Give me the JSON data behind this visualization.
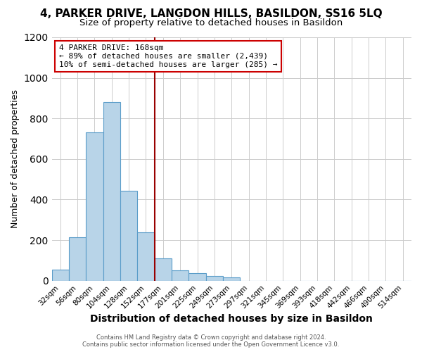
{
  "title": "4, PARKER DRIVE, LANGDON HILLS, BASILDON, SS16 5LQ",
  "subtitle": "Size of property relative to detached houses in Basildon",
  "xlabel": "Distribution of detached houses by size in Basildon",
  "ylabel": "Number of detached properties",
  "categories": [
    "32sqm",
    "56sqm",
    "80sqm",
    "104sqm",
    "128sqm",
    "152sqm",
    "177sqm",
    "201sqm",
    "225sqm",
    "249sqm",
    "273sqm",
    "297sqm",
    "321sqm",
    "345sqm",
    "369sqm",
    "393sqm",
    "418sqm",
    "442sqm",
    "466sqm",
    "490sqm",
    "514sqm"
  ],
  "values": [
    55,
    215,
    730,
    880,
    445,
    240,
    110,
    50,
    38,
    22,
    15,
    0,
    0,
    0,
    0,
    0,
    0,
    0,
    0,
    0,
    0
  ],
  "bar_color": "#b8d4e8",
  "bar_edge_color": "#5b9dc9",
  "property_line_color": "#990000",
  "annotation_text": "4 PARKER DRIVE: 168sqm\n← 89% of detached houses are smaller (2,439)\n10% of semi-detached houses are larger (285) →",
  "annotation_box_facecolor": "#ffffff",
  "annotation_box_edgecolor": "#cc0000",
  "footer_line1": "Contains HM Land Registry data © Crown copyright and database right 2024.",
  "footer_line2": "Contains public sector information licensed under the Open Government Licence v3.0.",
  "ylim": [
    0,
    1200
  ],
  "fig_facecolor": "#ffffff",
  "plot_facecolor": "#ffffff",
  "title_fontsize": 11,
  "subtitle_fontsize": 9.5,
  "tick_fontsize": 7.5,
  "ylabel_fontsize": 9,
  "xlabel_fontsize": 10,
  "footer_fontsize": 6,
  "annotation_fontsize": 8,
  "property_line_index": 6
}
